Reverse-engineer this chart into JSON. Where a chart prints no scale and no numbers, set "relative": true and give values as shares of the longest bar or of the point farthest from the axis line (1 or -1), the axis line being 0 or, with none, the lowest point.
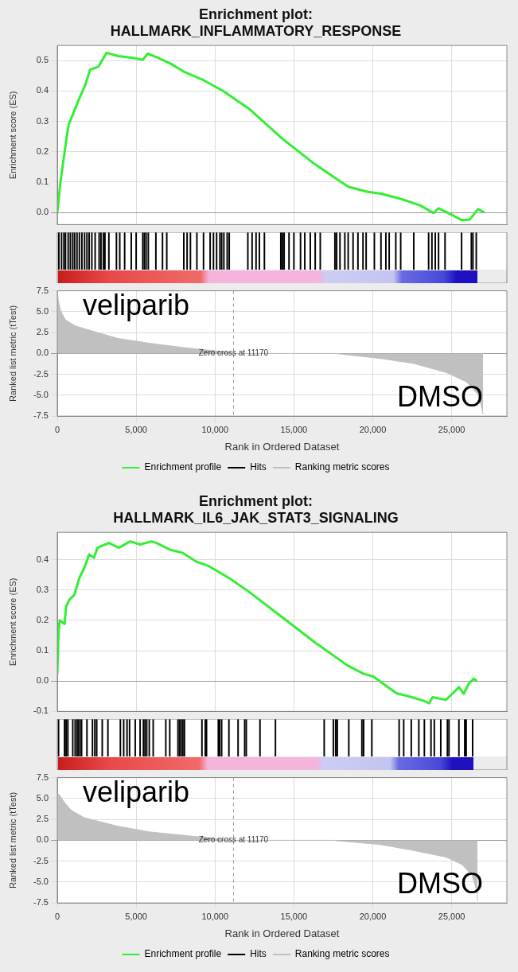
{
  "chart_data": [
    {
      "type": "line",
      "title": "Enrichment plot:\nHALLMARK_INFLAMMATORY_RESPONSE",
      "ylabel": "Enrichment score (ES)",
      "tick_labels": "y",
      "xlim": [
        0,
        28500
      ],
      "xticks": [
        {
          "value": 5000,
          "label": null
        },
        {
          "value": 10000,
          "label": null
        },
        {
          "value": 15000,
          "label": null
        },
        {
          "value": 20000,
          "label": null
        },
        {
          "value": 25000,
          "label": null
        }
      ],
      "ylim": [
        -0.04,
        0.55
      ],
      "yticks": [
        {
          "value": 0,
          "label": "0.0"
        },
        {
          "value": 0.1,
          "label": "0.1"
        },
        {
          "value": 0.2,
          "label": "0.2"
        },
        {
          "value": 0.3,
          "label": "0.3"
        },
        {
          "value": 0.4,
          "label": "0.4"
        },
        {
          "value": 0.5,
          "label": "0.5"
        }
      ],
      "grid": true,
      "series": [
        {
          "name": "Enrichment profile",
          "color": "#33ee33",
          "x": [
            0,
            200,
            625,
            730,
            1040,
            1350,
            1770,
            2080,
            2600,
            3125,
            3850,
            4690,
            5420,
            5730,
            6350,
            7190,
            8020,
            9270,
            10520,
            12190,
            14270,
            16350,
            18440,
            19690,
            20520,
            21770,
            23020,
            23850,
            24170,
            25100,
            25625,
            26150,
            26670,
            27080
          ],
          "values": [
            0,
            0.1,
            0.26,
            0.29,
            0.33,
            0.37,
            0.42,
            0.47,
            0.48,
            0.526,
            0.515,
            0.51,
            0.503,
            0.523,
            0.51,
            0.49,
            0.464,
            0.436,
            0.4,
            0.34,
            0.243,
            0.158,
            0.085,
            0.068,
            0.062,
            0.045,
            0.023,
            -0.002,
            0.014,
            -0.01,
            -0.025,
            -0.023,
            0.011,
            0
          ]
        }
      ]
    },
    {
      "type": "bar",
      "relative": true,
      "tick_labels": false,
      "xlim": [
        0,
        28500
      ],
      "series": [
        {
          "name": "Hits",
          "color": "#000000",
          "x": [
            100,
            270,
            420,
            520,
            690,
            830,
            980,
            1100,
            1250,
            1400,
            1560,
            1730,
            1880,
            2020,
            2190,
            2400,
            2650,
            2770,
            2920,
            3020,
            3270,
            3750,
            3960,
            4270,
            4690,
            5000,
            5420,
            5520,
            5630,
            5770,
            6250,
            6670,
            6940,
            8020,
            8230,
            8440,
            8850,
            9270,
            9690,
            9900,
            10100,
            10310,
            10420,
            10560,
            10770,
            10900,
            12080,
            12350,
            12600,
            12810,
            13130,
            14170,
            14270,
            14380,
            14690,
            15000,
            15420,
            15690,
            16040,
            16350,
            16670,
            17600,
            17710,
            17920,
            18230,
            18440,
            18750,
            19060,
            19380,
            19580,
            20100,
            20520,
            20830,
            21040,
            21460,
            21770,
            22600,
            23540,
            23750,
            23960,
            24170,
            24580,
            25630,
            26250,
            26350,
            26560
          ],
          "values": [
            1,
            1,
            1,
            1,
            1,
            1,
            1,
            1,
            1,
            1,
            1,
            1,
            1,
            1,
            1,
            1,
            1,
            1,
            1,
            1,
            1,
            1,
            1,
            1,
            1,
            1,
            1,
            1,
            1,
            1,
            1,
            1,
            1,
            1,
            1,
            1,
            1,
            1,
            1,
            1,
            1,
            1,
            1,
            1,
            1,
            1,
            1,
            1,
            1,
            1,
            1,
            1,
            1,
            1,
            1,
            1,
            1,
            1,
            1,
            1,
            1,
            1,
            1,
            1,
            1,
            1,
            1,
            1,
            1,
            1,
            1,
            1,
            1,
            1,
            1,
            1,
            1,
            1,
            1,
            1,
            1,
            1,
            1,
            1,
            1,
            1
          ]
        }
      ]
    },
    {
      "type": "area",
      "xlabel": "Rank in Ordered Dataset",
      "ylabel": "Ranked list metric (tTest)",
      "xlim": [
        0,
        28500
      ],
      "xticks": [
        0,
        {
          "value": 5000,
          "label": "5,000"
        },
        {
          "value": 10000,
          "label": "10,000"
        },
        {
          "value": 15000,
          "label": "15,000"
        },
        {
          "value": 20000,
          "label": "20,000"
        },
        {
          "value": 25000,
          "label": "25,000"
        }
      ],
      "ylim": [
        -7.5,
        7.5
      ],
      "yticks": [
        -7.5,
        {
          "value": -5,
          "label": "-5.0"
        },
        -2.5,
        {
          "value": 0,
          "label": "0.0"
        },
        2.5,
        {
          "value": 5,
          "label": "5.0"
        },
        7.5
      ],
      "grid": true,
      "legend": "bottom",
      "ref_lines": [
        {
          "axis": "x",
          "value": 11170,
          "label": "Zero cross at 11170",
          "color": "#999999",
          "line_style": "dashed"
        }
      ],
      "annotations": [
        "veliparib",
        "DMSO"
      ],
      "series": [
        {
          "name": "Ranking metric scores",
          "color": "#c0c0c0",
          "x": [
            0,
            60,
            210,
            520,
            1150,
            2190,
            3850,
            5940,
            8020,
            10100,
            11170,
            17600,
            20520,
            22600,
            24690,
            25940,
            26670,
            26870,
            27000
          ],
          "values": [
            7.5,
            6.4,
            5.1,
            4.0,
            3.3,
            2.7,
            1.8,
            1.2,
            0.7,
            0.3,
            0,
            0,
            -0.6,
            -1.2,
            -2.3,
            -3.4,
            -4.9,
            -6.2,
            -7.3
          ]
        }
      ]
    },
    {
      "type": "line",
      "title": "Enrichment plot:\nHALLMARK_IL6_JAK_STAT3_SIGNALING",
      "ylabel": "Enrichment score (ES)",
      "tick_labels": "y",
      "xlim": [
        0,
        28500
      ],
      "xticks": [
        {
          "value": 5000,
          "label": null
        },
        {
          "value": 10000,
          "label": null
        },
        {
          "value": 15000,
          "label": null
        },
        {
          "value": 20000,
          "label": null
        },
        {
          "value": 25000,
          "label": null
        }
      ],
      "ylim": [
        -0.1,
        0.49
      ],
      "yticks": [
        {
          "value": -0.1,
          "label": "-0.1"
        },
        {
          "value": 0,
          "label": "0.0"
        },
        {
          "value": 0.1,
          "label": "0.1"
        },
        {
          "value": 0.2,
          "label": "0.2"
        },
        {
          "value": 0.3,
          "label": "0.3"
        },
        {
          "value": 0.4,
          "label": "0.4"
        }
      ],
      "grid": true,
      "series": [
        {
          "name": "Enrichment profile",
          "color": "#33ee33",
          "x": [
            0,
            80,
            150,
            460,
            560,
            770,
            1080,
            1400,
            1710,
            2020,
            2330,
            2540,
            3270,
            3900,
            4625,
            5250,
            5980,
            6290,
            7125,
            7960,
            8790,
            9625,
            10875,
            12125,
            14210,
            16290,
            18375,
            19420,
            20040,
            20670,
            21500,
            22330,
            23170,
            23580,
            23790,
            24625,
            25040,
            25460,
            25770,
            26080,
            26400,
            26600
          ],
          "values": [
            0.024,
            0.157,
            0.2,
            0.188,
            0.245,
            0.268,
            0.284,
            0.34,
            0.372,
            0.417,
            0.406,
            0.439,
            0.455,
            0.439,
            0.46,
            0.45,
            0.46,
            0.455,
            0.433,
            0.422,
            0.394,
            0.378,
            0.34,
            0.295,
            0.212,
            0.129,
            0.052,
            0.024,
            0.015,
            -0.009,
            -0.04,
            -0.051,
            -0.064,
            -0.073,
            -0.053,
            -0.062,
            -0.042,
            -0.02,
            -0.042,
            -0.009,
            0.008,
            0
          ]
        }
      ]
    },
    {
      "type": "bar",
      "relative": true,
      "tick_labels": false,
      "xlim": [
        0,
        28500
      ],
      "series": [
        {
          "name": "Hits",
          "color": "#000000",
          "x": [
            80,
            460,
            560,
            670,
            980,
            1130,
            1250,
            1330,
            1440,
            1540,
            1880,
            2230,
            2380,
            2500,
            2850,
            3210,
            4000,
            4210,
            4420,
            4580,
            4940,
            5250,
            5460,
            5560,
            5670,
            5830,
            6080,
            6880,
            7130,
            7650,
            7750,
            7850,
            7960,
            8060,
            9170,
            9380,
            9460,
            10210,
            10290,
            10420,
            10880,
            11460,
            11880,
            11980,
            12850,
            13830,
            16920,
            17500,
            17650,
            17750,
            18480,
            19310,
            19420,
            19940,
            21670,
            21960,
            22440,
            22920,
            23270,
            23690,
            23900,
            24310,
            24730,
            24830,
            25460,
            25830,
            25920,
            26330
          ],
          "values": [
            1,
            1,
            1,
            1,
            1,
            1,
            1,
            1,
            1,
            1,
            1,
            1,
            1,
            1,
            1,
            1,
            1,
            1,
            1,
            1,
            1,
            1,
            1,
            1,
            1,
            1,
            1,
            1,
            1,
            1,
            1,
            1,
            1,
            1,
            1,
            1,
            1,
            1,
            1,
            1,
            1,
            1,
            1,
            1,
            1,
            1,
            1,
            1,
            1,
            1,
            1,
            1,
            1,
            1,
            1,
            1,
            1,
            1,
            1,
            1,
            1,
            1,
            1,
            1,
            1,
            1,
            1,
            1
          ]
        }
      ]
    },
    {
      "type": "area",
      "xlabel": "Rank in Ordered Dataset",
      "ylabel": "Ranked list metric (tTest)",
      "xlim": [
        0,
        28500
      ],
      "xticks": [
        0,
        {
          "value": 5000,
          "label": "5,000"
        },
        {
          "value": 10000,
          "label": "10,000"
        },
        {
          "value": 15000,
          "label": "15,000"
        },
        {
          "value": 20000,
          "label": "20,000"
        },
        {
          "value": 25000,
          "label": "25,000"
        }
      ],
      "ylim": [
        -7.5,
        7.5
      ],
      "yticks": [
        -7.5,
        {
          "value": -5,
          "label": "-5.0"
        },
        -2.5,
        {
          "value": 0,
          "label": "0.0"
        },
        2.5,
        {
          "value": 5,
          "label": "5.0"
        },
        7.5
      ],
      "grid": true,
      "legend": "bottom",
      "ref_lines": [
        {
          "axis": "x",
          "value": 11170,
          "label": "Zero cross at 11170",
          "color": "#999999",
          "line_style": "dashed"
        }
      ],
      "annotations": [
        "veliparib",
        "DMSO"
      ],
      "series": [
        {
          "name": "Ranking metric scores",
          "color": "#c0c0c0",
          "x": [
            0,
            150,
            460,
            875,
            1710,
            3790,
            5875,
            7960,
            10040,
            10875,
            17430,
            20450,
            22540,
            24620,
            25660,
            26290,
            26600,
            26640
          ],
          "values": [
            5.6,
            5.4,
            4.5,
            3.6,
            2.7,
            1.7,
            1.0,
            0.6,
            0.2,
            0,
            0,
            -0.5,
            -1.2,
            -2.0,
            -2.9,
            -4.2,
            -6.0,
            -7.3
          ]
        }
      ]
    }
  ]
}
